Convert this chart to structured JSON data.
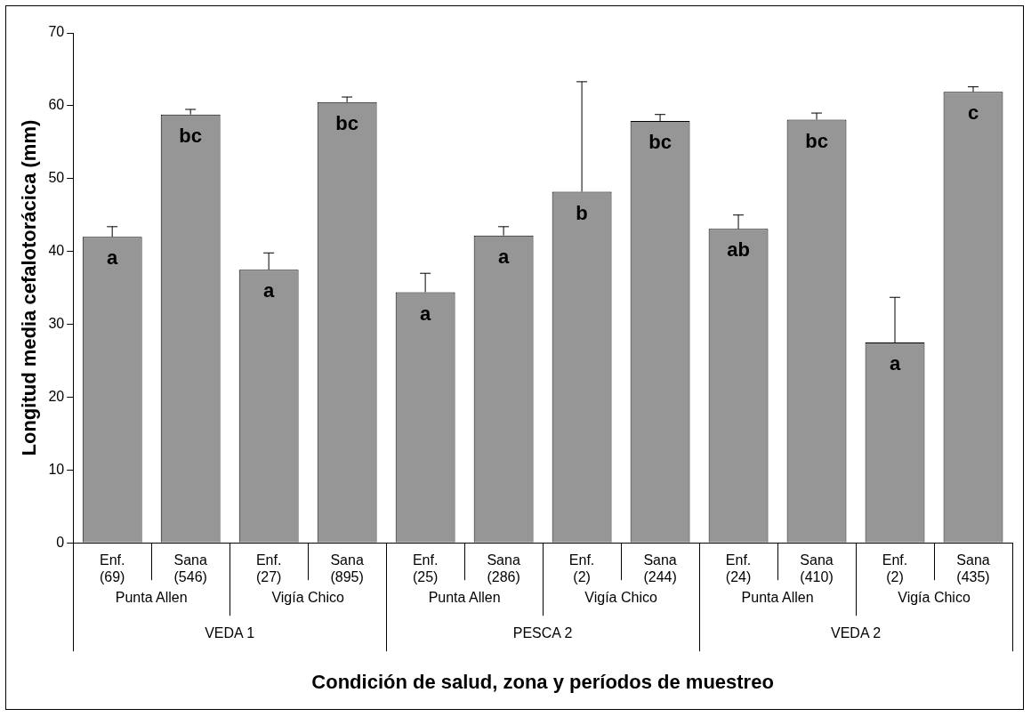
{
  "chart_data": {
    "type": "bar",
    "xlabel": "Condición de salud, zona y períodos de muestreo",
    "ylabel": "Longitud media cefalotorácica (mm)",
    "categories": [
      "Enf.\n(69)",
      "Sana\n(546)",
      "Enf.\n(27)",
      "Sana\n(895)",
      "Enf.\n(25)",
      "Sana\n(286)",
      "Enf.\n(2)",
      "Sana\n(244)",
      "Enf.\n(24)",
      "Sana\n(410)",
      "Enf.\n(2)",
      "Sana\n(435)"
    ],
    "values": [
      42.0,
      58.8,
      37.5,
      60.5,
      34.4,
      42.2,
      48.2,
      57.9,
      43.1,
      58.1,
      27.5,
      61.9
    ],
    "errors": [
      [
        42.0,
        43.4
      ],
      [
        58.8,
        59.5
      ],
      [
        37.5,
        39.8
      ],
      [
        60.5,
        61.2
      ],
      [
        34.4,
        37.0
      ],
      [
        42.2,
        43.4
      ],
      [
        48.2,
        63.3
      ],
      [
        57.9,
        58.8
      ],
      [
        43.1,
        45.0
      ],
      [
        58.1,
        59.0
      ],
      [
        27.5,
        33.7
      ],
      [
        61.9,
        62.6
      ]
    ],
    "value_labels": [
      "a",
      "bc",
      "a",
      "bc",
      "a",
      "a",
      "b",
      "bc",
      "ab",
      "bc",
      "a",
      "c"
    ],
    "color": "#969696",
    "ylim": [
      0,
      70
    ],
    "yticks": [
      0,
      10,
      20,
      30,
      40,
      50,
      60,
      70
    ],
    "annotations": [
      "Punta Allen",
      "Vigía Chico",
      "Punta Allen",
      "Vigía Chico",
      "Punta Allen",
      "Vigía Chico",
      "VEDA 1",
      "PESCA 2",
      "VEDA 2"
    ],
    "grid": false,
    "legend": false
  }
}
